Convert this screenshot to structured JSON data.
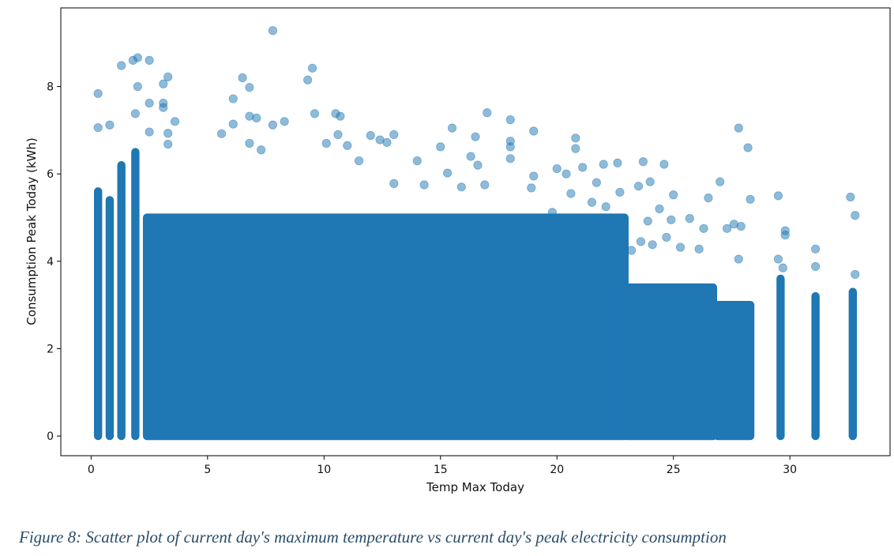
{
  "figure": {
    "caption": "Figure 8: Scatter plot of current day's maximum temperature vs current day's peak electricity consumption"
  },
  "chart_data": {
    "type": "scatter",
    "title": "",
    "xlabel": "Temp Max Today",
    "ylabel": "Consumption Peak Today (kWh)",
    "xlim": [
      -1.3,
      34.3
    ],
    "ylim": [
      -0.45,
      9.8
    ],
    "x_ticks": [
      0,
      5,
      10,
      15,
      20,
      25,
      30
    ],
    "y_ticks": [
      0,
      2,
      4,
      6,
      8
    ],
    "grid": false,
    "legend": "none",
    "marker_color": "#1f77b4",
    "marker_alpha": 0.5,
    "dense_columns": [
      {
        "x": 0.3,
        "y_min": 0,
        "y_max": 5.6
      },
      {
        "x": 0.8,
        "y_min": 0,
        "y_max": 5.4
      },
      {
        "x": 1.3,
        "y_min": 0,
        "y_max": 6.2
      },
      {
        "x": 1.9,
        "y_min": 0,
        "y_max": 6.5
      },
      {
        "x_min": 2.4,
        "x_max": 22.9,
        "y_min": 0,
        "y_max": 5.0
      },
      {
        "x_min": 23.0,
        "x_max": 26.7,
        "y_min": 0,
        "y_max": 3.4
      },
      {
        "x_min": 26.9,
        "x_max": 28.3,
        "y_min": 0,
        "y_max": 3.0
      },
      {
        "x": 29.6,
        "y_min": 0,
        "y_max": 3.6
      },
      {
        "x": 31.1,
        "y_min": 0,
        "y_max": 3.2
      },
      {
        "x": 32.7,
        "y_min": 0,
        "y_max": 3.3
      }
    ],
    "points": [
      [
        7.8,
        9.28
      ],
      [
        2.0,
        8.66
      ],
      [
        1.8,
        8.6
      ],
      [
        2.5,
        8.6
      ],
      [
        1.3,
        8.48
      ],
      [
        9.5,
        8.42
      ],
      [
        3.3,
        8.22
      ],
      [
        6.5,
        8.2
      ],
      [
        9.3,
        8.15
      ],
      [
        3.1,
        8.06
      ],
      [
        2.0,
        8.0
      ],
      [
        6.8,
        7.98
      ],
      [
        0.3,
        7.84
      ],
      [
        6.1,
        7.72
      ],
      [
        2.5,
        7.62
      ],
      [
        3.1,
        7.62
      ],
      [
        3.1,
        7.52
      ],
      [
        10.5,
        7.38
      ],
      [
        17.0,
        7.4
      ],
      [
        1.9,
        7.38
      ],
      [
        9.6,
        7.38
      ],
      [
        10.7,
        7.32
      ],
      [
        6.8,
        7.32
      ],
      [
        7.1,
        7.28
      ],
      [
        18.0,
        7.24
      ],
      [
        3.6,
        7.2
      ],
      [
        8.3,
        7.2
      ],
      [
        7.8,
        7.12
      ],
      [
        0.8,
        7.12
      ],
      [
        0.3,
        7.06
      ],
      [
        6.1,
        7.14
      ],
      [
        15.5,
        7.05
      ],
      [
        27.8,
        7.05
      ],
      [
        19.0,
        6.98
      ],
      [
        2.5,
        6.96
      ],
      [
        5.6,
        6.92
      ],
      [
        10.6,
        6.9
      ],
      [
        12.0,
        6.88
      ],
      [
        13.0,
        6.9
      ],
      [
        16.5,
        6.85
      ],
      [
        20.8,
        6.82
      ],
      [
        3.3,
        6.93
      ],
      [
        12.4,
        6.78
      ],
      [
        18.0,
        6.75
      ],
      [
        12.7,
        6.72
      ],
      [
        6.8,
        6.7
      ],
      [
        10.1,
        6.7
      ],
      [
        3.3,
        6.68
      ],
      [
        11.0,
        6.65
      ],
      [
        18.0,
        6.62
      ],
      [
        28.2,
        6.6
      ],
      [
        20.8,
        6.58
      ],
      [
        15.0,
        6.62
      ],
      [
        7.3,
        6.55
      ],
      [
        16.3,
        6.4
      ],
      [
        18.0,
        6.35
      ],
      [
        11.5,
        6.3
      ],
      [
        14.0,
        6.3
      ],
      [
        23.7,
        6.28
      ],
      [
        22.6,
        6.25
      ],
      [
        22.0,
        6.22
      ],
      [
        24.6,
        6.22
      ],
      [
        16.6,
        6.2
      ],
      [
        21.1,
        6.15
      ],
      [
        20.0,
        6.12
      ],
      [
        15.3,
        6.02
      ],
      [
        20.4,
        6.0
      ],
      [
        19.0,
        5.95
      ],
      [
        24.0,
        5.82
      ],
      [
        21.7,
        5.8
      ],
      [
        27.0,
        5.82
      ],
      [
        13.0,
        5.78
      ],
      [
        16.9,
        5.75
      ],
      [
        23.5,
        5.72
      ],
      [
        15.9,
        5.7
      ],
      [
        14.3,
        5.75
      ],
      [
        18.9,
        5.68
      ],
      [
        22.7,
        5.58
      ],
      [
        20.6,
        5.55
      ],
      [
        25.0,
        5.52
      ],
      [
        29.5,
        5.5
      ],
      [
        32.6,
        5.47
      ],
      [
        26.5,
        5.45
      ],
      [
        28.3,
        5.42
      ],
      [
        21.5,
        5.35
      ],
      [
        22.1,
        5.25
      ],
      [
        24.4,
        5.2
      ],
      [
        19.8,
        5.12
      ],
      [
        32.8,
        5.05
      ],
      [
        25.7,
        4.98
      ],
      [
        23.9,
        4.92
      ],
      [
        24.9,
        4.95
      ],
      [
        27.6,
        4.85
      ],
      [
        27.3,
        4.75
      ],
      [
        27.9,
        4.8
      ],
      [
        26.3,
        4.75
      ],
      [
        29.8,
        4.7
      ],
      [
        29.8,
        4.6
      ],
      [
        24.7,
        4.55
      ],
      [
        23.6,
        4.45
      ],
      [
        25.3,
        4.32
      ],
      [
        24.1,
        4.38
      ],
      [
        23.2,
        4.25
      ],
      [
        26.1,
        4.28
      ],
      [
        31.1,
        4.28
      ],
      [
        29.5,
        4.05
      ],
      [
        27.8,
        4.05
      ],
      [
        31.1,
        3.88
      ],
      [
        29.7,
        3.85
      ],
      [
        32.8,
        3.7
      ]
    ]
  }
}
